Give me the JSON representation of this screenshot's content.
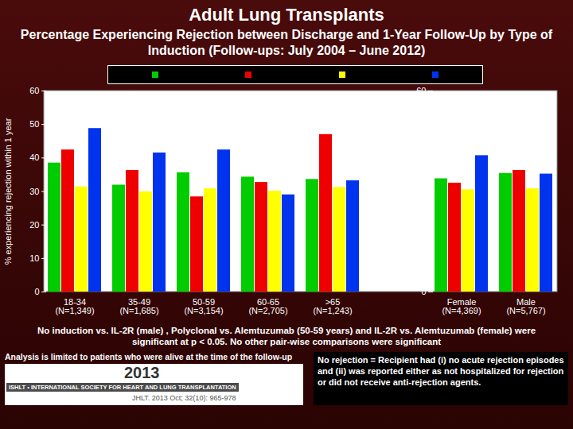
{
  "chart_data": {
    "type": "bar",
    "title": "Adult Lung Transplants",
    "subtitle": "Percentage Experiencing Rejection between Discharge and 1-Year Follow-Up by Type of Induction (Follow-ups: July 2004 – June 2012)",
    "y_label": "% experiencing rejection within 1 year",
    "categories": [
      "18-34\n(N=1,349)",
      "35-49\n(N=1,685)",
      "50-59\n(N=3,154)",
      "60-65\n(N=2,705)",
      ">65\n(N=1,243)",
      null,
      "Female\n(N=4,369)",
      "Male\n(N=5,767)"
    ],
    "series": [
      {
        "color": "#00cc00",
        "values": [
          38.5,
          31.9,
          35.6,
          34.3,
          33.6,
          null,
          33.8,
          35.4
        ]
      },
      {
        "color": "#ee0000",
        "values": [
          42.4,
          36.3,
          28.4,
          32.7,
          47.0,
          null,
          32.5,
          36.3
        ]
      },
      {
        "color": "#ffff00",
        "values": [
          31.4,
          29.9,
          30.8,
          30.1,
          31.2,
          null,
          30.5,
          30.8
        ]
      },
      {
        "color": "#0033ee",
        "values": [
          48.8,
          41.5,
          42.4,
          29.0,
          33.2,
          null,
          40.7,
          35.2
        ]
      }
    ],
    "ylim": [
      0,
      60
    ],
    "yticks": [
      0,
      10,
      20,
      30,
      40,
      50,
      60
    ],
    "grid": false,
    "legend": "top",
    "annotations": [
      "No induction vs. IL-2R (male) , Polyclonal vs. Alemtuzumab (50-59 years) and IL-2R vs. Alemtuzumab (female) were significant at p < 0.05. No other pair-wise comparisons were significant",
      "Analysis is limited to patients who were alive at the time of the follow-up",
      "2013",
      "ISHLT • INTERNATIONAL SOCIETY FOR HEART AND LUNG TRANSPLANTATION",
      "JHLT. 2013 Oct; 32(10): 965-978",
      "No rejection = Recipient had (i) no acute rejection episodes and (ii) was reported either as not hospitalized for rejection or did not receive anti-rejection agents."
    ]
  }
}
